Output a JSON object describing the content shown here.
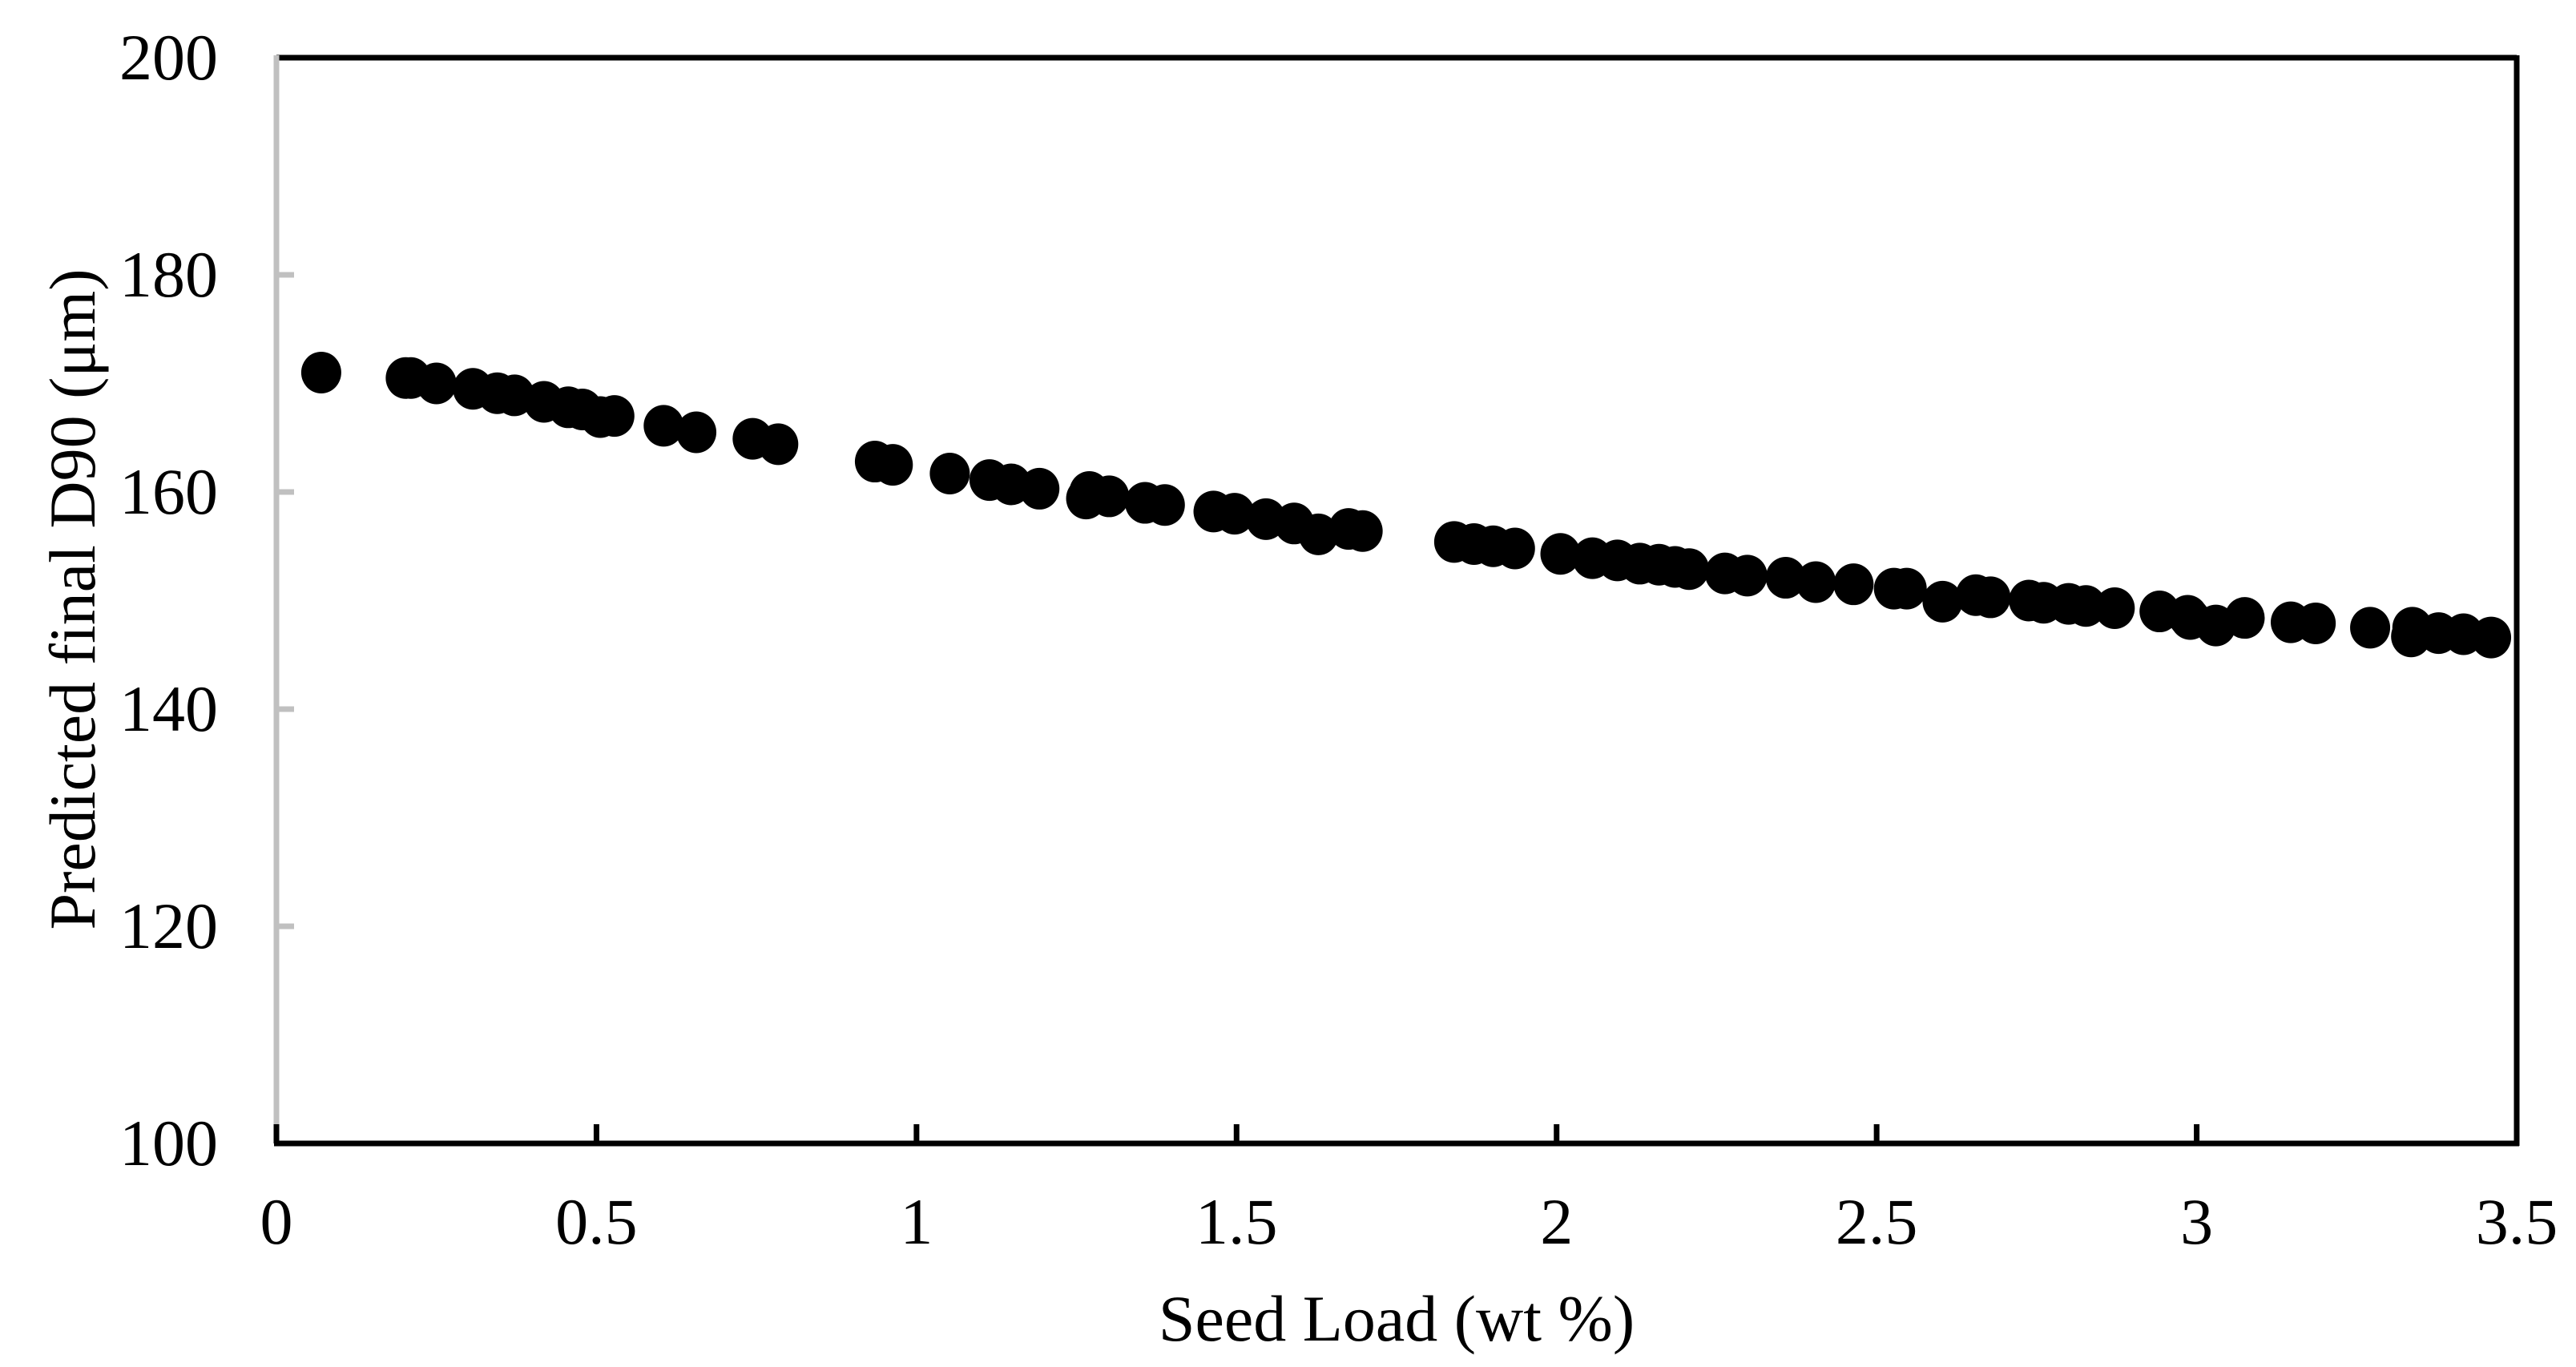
{
  "chart_data": {
    "type": "scatter",
    "title": "",
    "xlabel": "Seed Load (wt %)",
    "ylabel": "Predicted final D90 (μm)",
    "xlim": [
      0,
      3.5
    ],
    "ylim": [
      100,
      200
    ],
    "xticks": [
      0,
      0.5,
      1,
      1.5,
      2,
      2.5,
      3,
      3.5
    ],
    "xtick_labels": [
      "0",
      "0.5",
      "1",
      "1.5",
      "2",
      "2.5",
      "3",
      "3.5"
    ],
    "yticks": [
      100,
      120,
      140,
      160,
      180,
      200
    ],
    "ytick_labels": [
      "100",
      "120",
      "140",
      "160",
      "180",
      "200"
    ],
    "grid": false,
    "legend": null,
    "marker": {
      "shape": "circle",
      "color": "#000000"
    },
    "series": [
      {
        "name": "Predicted final D90",
        "points": [
          [
            0.07,
            171.0
          ],
          [
            0.202,
            170.5
          ],
          [
            0.21,
            170.5
          ],
          [
            0.25,
            170.0
          ],
          [
            0.307,
            169.5
          ],
          [
            0.345,
            169.1
          ],
          [
            0.372,
            168.9
          ],
          [
            0.418,
            168.3
          ],
          [
            0.456,
            167.8
          ],
          [
            0.478,
            167.6
          ],
          [
            0.506,
            166.9
          ],
          [
            0.528,
            167.0
          ],
          [
            0.605,
            166.1
          ],
          [
            0.656,
            165.5
          ],
          [
            0.744,
            164.9
          ],
          [
            0.784,
            164.4
          ],
          [
            0.935,
            162.8
          ],
          [
            0.963,
            162.5
          ],
          [
            1.052,
            161.7
          ],
          [
            1.114,
            161.1
          ],
          [
            1.148,
            160.7
          ],
          [
            1.192,
            160.3
          ],
          [
            1.265,
            159.4
          ],
          [
            1.27,
            160.0
          ],
          [
            1.301,
            159.6
          ],
          [
            1.357,
            159.0
          ],
          [
            1.388,
            158.8
          ],
          [
            1.464,
            158.2
          ],
          [
            1.497,
            158.0
          ],
          [
            1.546,
            157.5
          ],
          [
            1.59,
            157.1
          ],
          [
            1.628,
            156.1
          ],
          [
            1.675,
            156.6
          ],
          [
            1.697,
            156.4
          ],
          [
            1.84,
            155.4
          ],
          [
            1.871,
            155.2
          ],
          [
            1.901,
            155.0
          ],
          [
            1.935,
            154.8
          ],
          [
            2.006,
            154.3
          ],
          [
            2.056,
            153.9
          ],
          [
            2.095,
            153.7
          ],
          [
            2.13,
            153.4
          ],
          [
            2.16,
            153.3
          ],
          [
            2.185,
            153.1
          ],
          [
            2.207,
            152.9
          ],
          [
            2.263,
            152.5
          ],
          [
            2.298,
            152.3
          ],
          [
            2.358,
            152.1
          ],
          [
            2.405,
            151.7
          ],
          [
            2.464,
            151.5
          ],
          [
            2.527,
            151.1
          ],
          [
            2.547,
            151.1
          ],
          [
            2.603,
            149.9
          ],
          [
            2.655,
            150.5
          ],
          [
            2.678,
            150.3
          ],
          [
            2.738,
            150.0
          ],
          [
            2.761,
            149.8
          ],
          [
            2.8,
            149.7
          ],
          [
            2.827,
            149.5
          ],
          [
            2.872,
            149.3
          ],
          [
            2.942,
            149.0
          ],
          [
            2.986,
            148.6
          ],
          [
            2.99,
            148.3
          ],
          [
            3.03,
            147.7
          ],
          [
            3.075,
            148.4
          ],
          [
            3.147,
            148.0
          ],
          [
            3.186,
            147.9
          ],
          [
            3.271,
            147.5
          ],
          [
            3.335,
            146.7
          ],
          [
            3.337,
            147.5
          ],
          [
            3.378,
            147.0
          ],
          [
            3.417,
            146.9
          ],
          [
            3.46,
            146.6
          ]
        ]
      }
    ]
  },
  "colors": {
    "marker": "#000000",
    "axis_left": "#c0c0c0",
    "axis_frame": "#000000",
    "background": "#ffffff"
  }
}
